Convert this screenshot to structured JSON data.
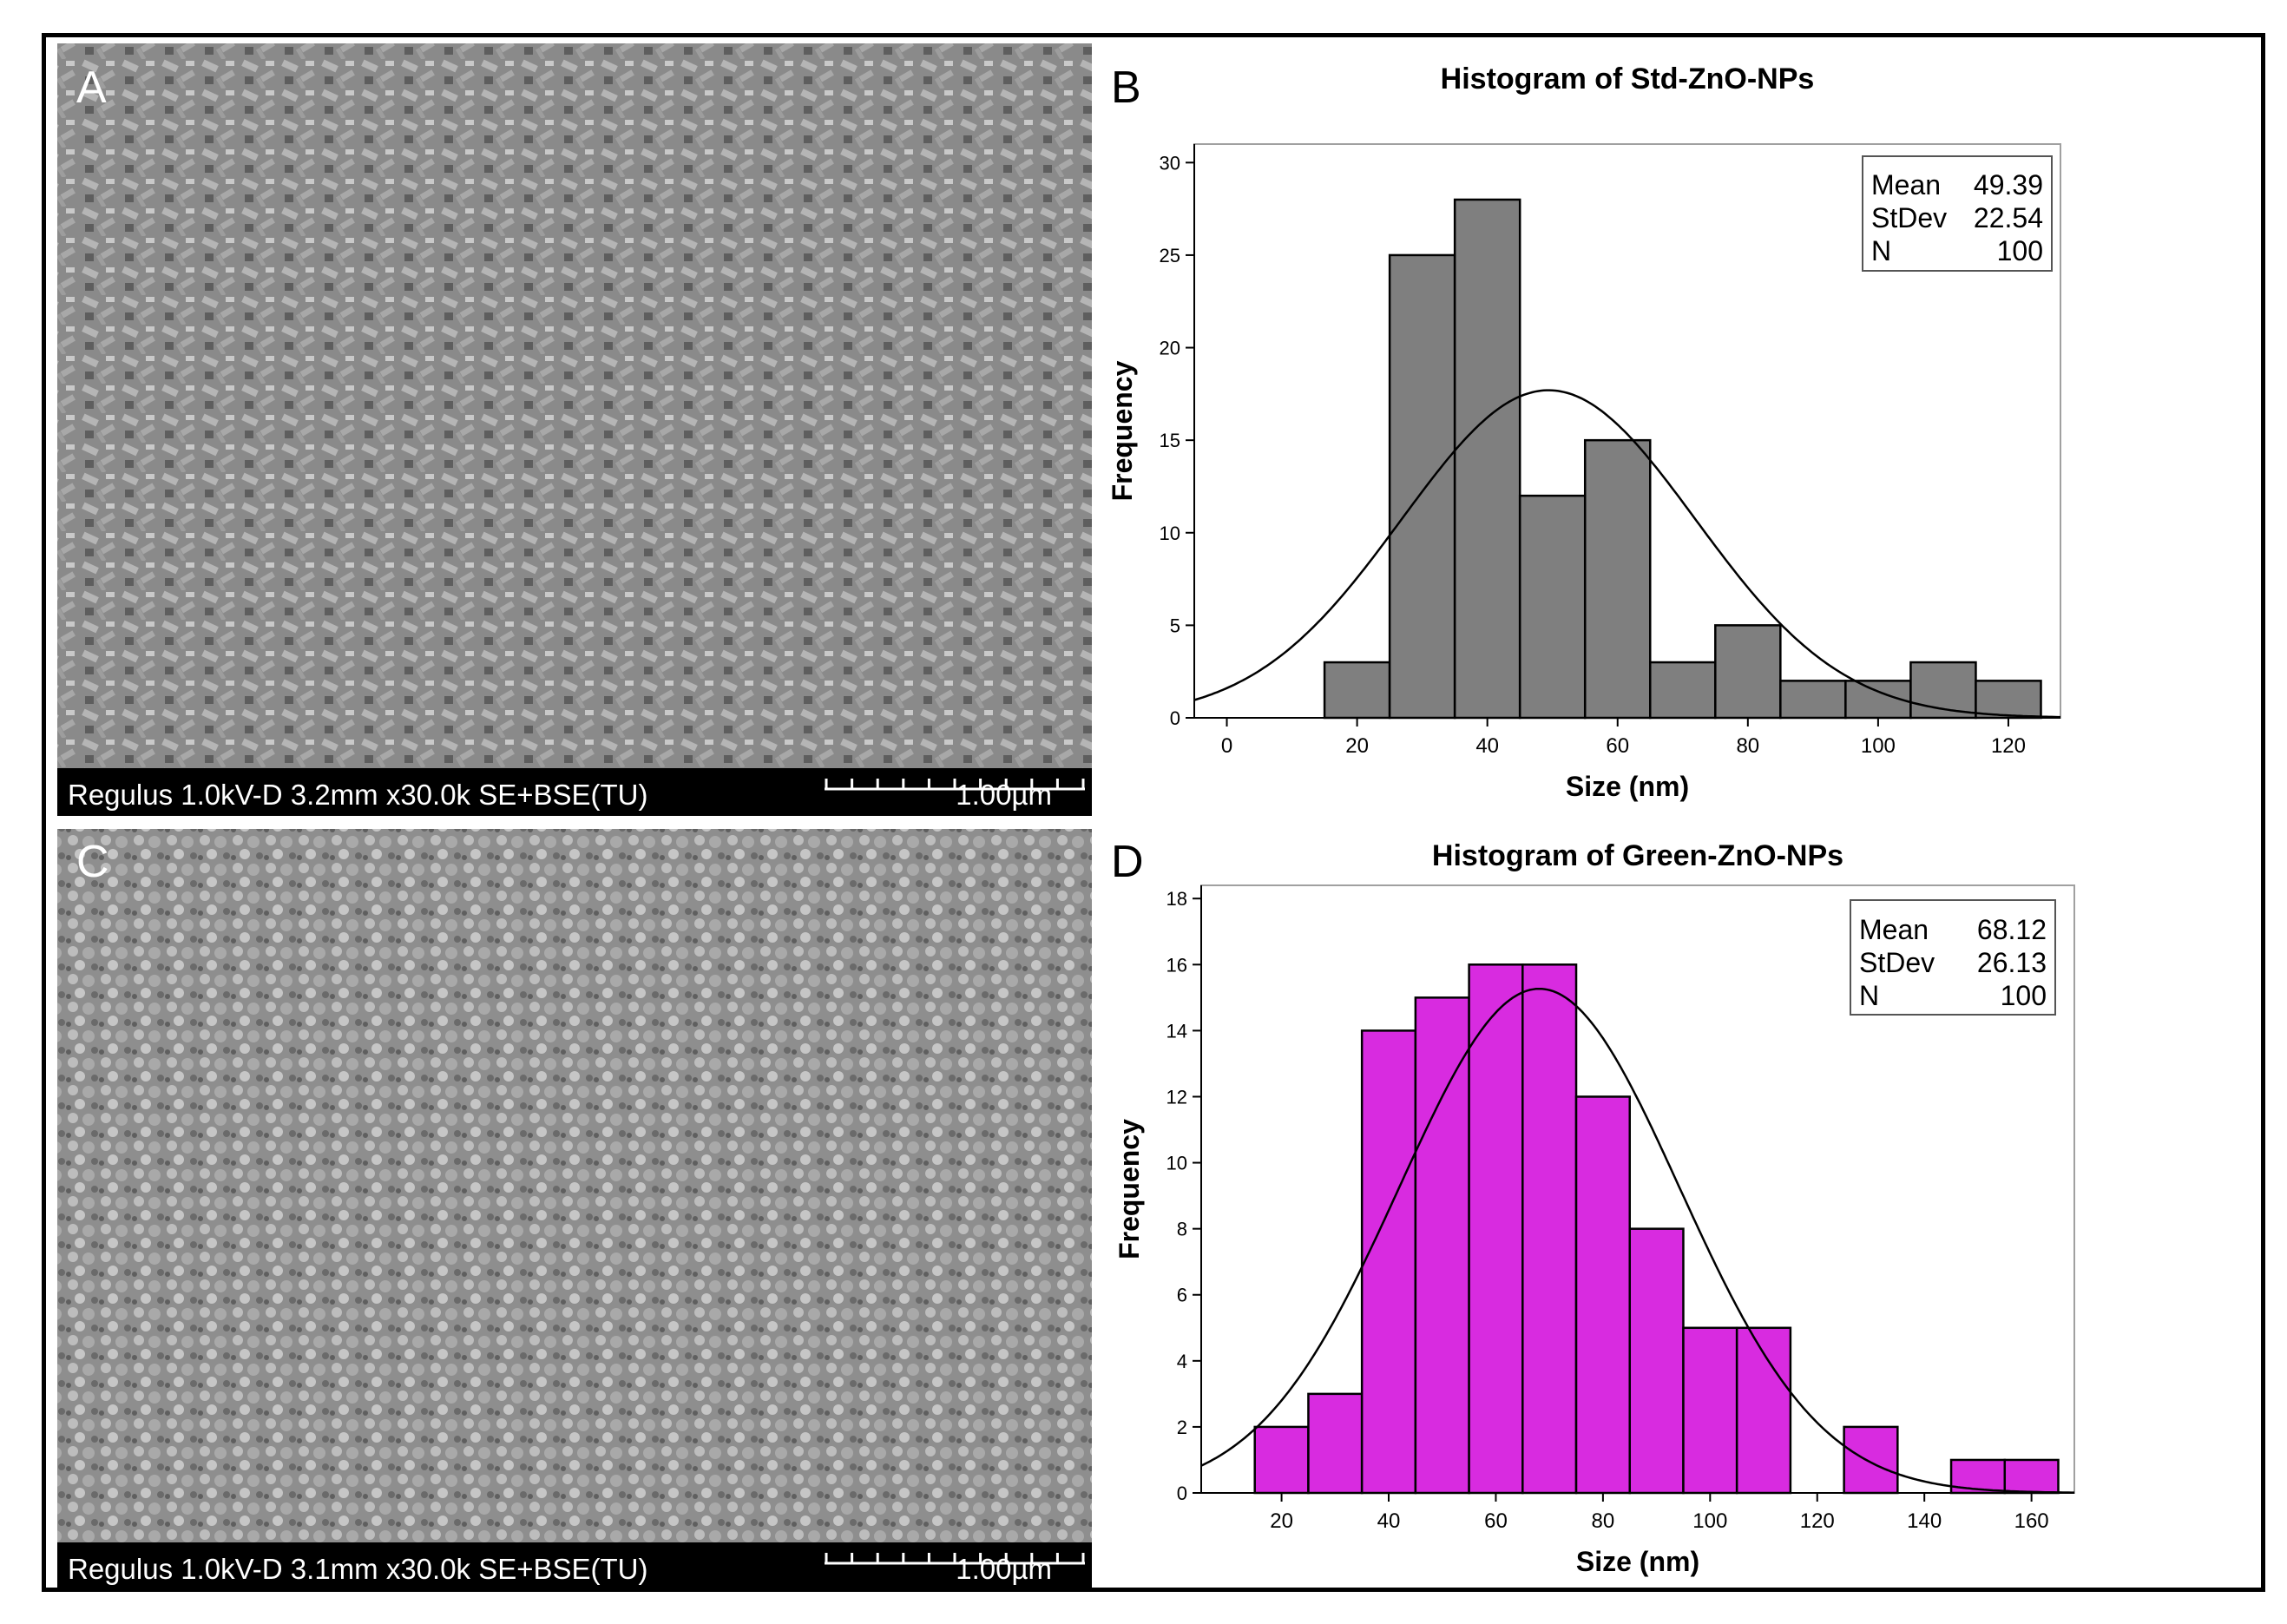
{
  "colors": {
    "stdbar": "#7f7f7f",
    "greenbar": "#d82be0",
    "fitline": "#000000",
    "sem_bg": "#8c8c8c",
    "sem_caption_bg": "#000000",
    "sem_caption_text": "#ffffff"
  },
  "panels": {
    "A": {
      "letter": "A",
      "caption_left": "Regulus 1.0kV-D 3.2mm x30.0k SE+BSE(TU)",
      "caption_scale": "1.00µm"
    },
    "B": {
      "letter": "B"
    },
    "C": {
      "letter": "C",
      "caption_left": "Regulus 1.0kV-D 3.1mm x30.0k SE+BSE(TU)",
      "caption_scale": "1.00µm"
    },
    "D": {
      "letter": "D"
    }
  },
  "chart_data": [
    {
      "type": "bar",
      "subtype": "histogram",
      "title": "Histogram of Std-ZnO-NPs",
      "xlabel": "Size (nm)",
      "ylabel": "Frequency",
      "bin_edges": [
        15,
        25,
        35,
        45,
        55,
        65,
        75,
        85,
        95,
        105,
        115,
        125
      ],
      "values": [
        3,
        25,
        28,
        12,
        15,
        3,
        5,
        2,
        2,
        3,
        2
      ],
      "xlim": [
        -5,
        128
      ],
      "ylim": [
        0,
        31
      ],
      "xticks": [
        0,
        20,
        40,
        60,
        80,
        100,
        120
      ],
      "yticks": [
        0,
        5,
        10,
        15,
        20,
        25,
        30
      ],
      "bar_color": "stdbar",
      "fit": {
        "type": "normal",
        "mean": 49.39,
        "stdev": 22.54,
        "n": 100,
        "binwidth": 10
      },
      "stats": [
        {
          "label": "Mean",
          "value": "49.39"
        },
        {
          "label": "StDev",
          "value": "22.54"
        },
        {
          "label": "N",
          "value": "100"
        }
      ]
    },
    {
      "type": "bar",
      "subtype": "histogram",
      "title": "Histogram of Green-ZnO-NPs",
      "xlabel": "Size (nm)",
      "ylabel": "Frequency",
      "bin_edges": [
        15,
        25,
        35,
        45,
        55,
        65,
        75,
        85,
        95,
        105,
        115,
        125,
        135,
        145,
        155,
        165
      ],
      "values": [
        2,
        3,
        14,
        15,
        16,
        16,
        12,
        8,
        5,
        5,
        0,
        2,
        0,
        1,
        1
      ],
      "xlim": [
        5,
        168
      ],
      "ylim": [
        0,
        18.4
      ],
      "xticks": [
        20,
        40,
        60,
        80,
        100,
        120,
        140,
        160
      ],
      "yticks": [
        0,
        2,
        4,
        6,
        8,
        10,
        12,
        14,
        16,
        18
      ],
      "bar_color": "greenbar",
      "fit": {
        "type": "normal",
        "mean": 68.12,
        "stdev": 26.13,
        "n": 100,
        "binwidth": 10
      },
      "stats": [
        {
          "label": "Mean",
          "value": "68.12"
        },
        {
          "label": "StDev",
          "value": "26.13"
        },
        {
          "label": "N",
          "value": "100"
        }
      ]
    }
  ]
}
